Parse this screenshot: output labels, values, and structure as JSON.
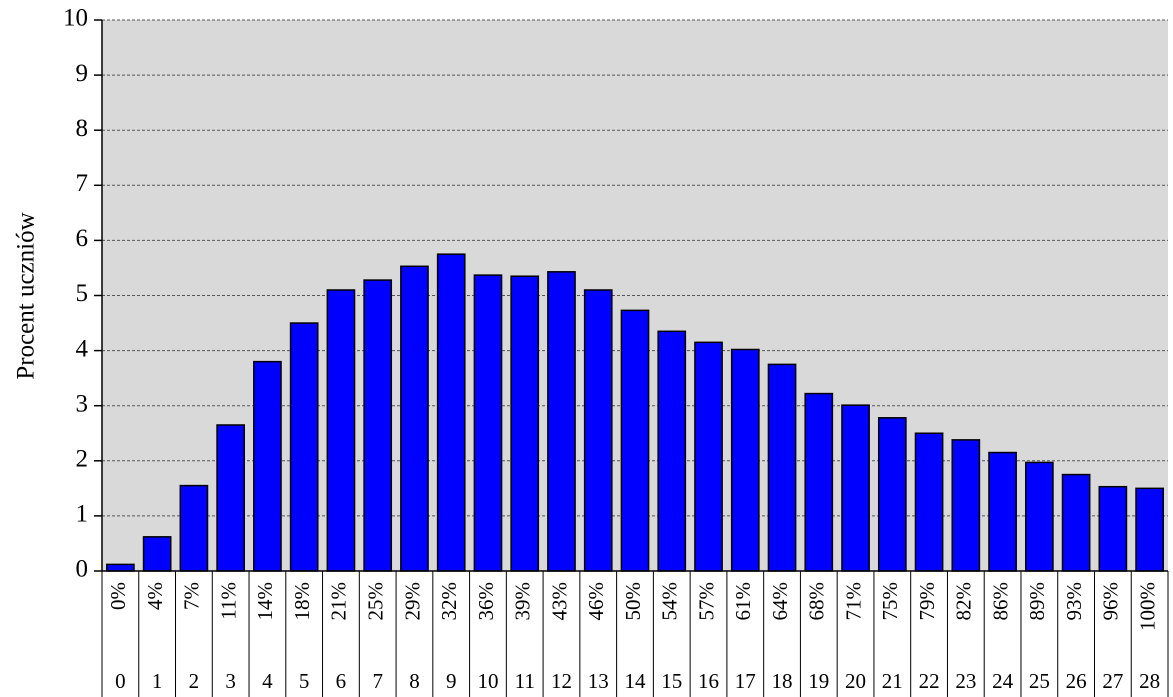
{
  "chart_data": {
    "type": "bar",
    "y_label": "Procent uczniów",
    "categories": [
      "0",
      "1",
      "2",
      "3",
      "4",
      "5",
      "6",
      "7",
      "8",
      "9",
      "10",
      "11",
      "12",
      "13",
      "14",
      "15",
      "16",
      "17",
      "18",
      "19",
      "20",
      "21",
      "22",
      "23",
      "24",
      "25",
      "26",
      "27",
      "28"
    ],
    "percent_labels": [
      "0%",
      "4%",
      "7%",
      "11%",
      "14%",
      "18%",
      "21%",
      "25%",
      "29%",
      "32%",
      "36%",
      "39%",
      "43%",
      "46%",
      "50%",
      "54%",
      "57%",
      "61%",
      "64%",
      "68%",
      "71%",
      "75%",
      "79%",
      "82%",
      "86%",
      "89%",
      "93%",
      "96%",
      "100%"
    ],
    "values": [
      0.12,
      0.62,
      1.55,
      2.65,
      3.8,
      4.5,
      5.1,
      5.28,
      5.53,
      5.75,
      5.37,
      5.35,
      5.43,
      5.1,
      4.73,
      4.35,
      4.15,
      4.02,
      3.75,
      3.22,
      3.01,
      2.78,
      2.5,
      2.38,
      2.15,
      1.97,
      1.75,
      1.53,
      1.5
    ],
    "color": "#0000ff",
    "background": "#d9d9d9",
    "ylim": [
      0,
      10
    ],
    "yticks": [
      0,
      1,
      2,
      3,
      4,
      5,
      6,
      7,
      8,
      9,
      10
    ],
    "grid": true
  }
}
